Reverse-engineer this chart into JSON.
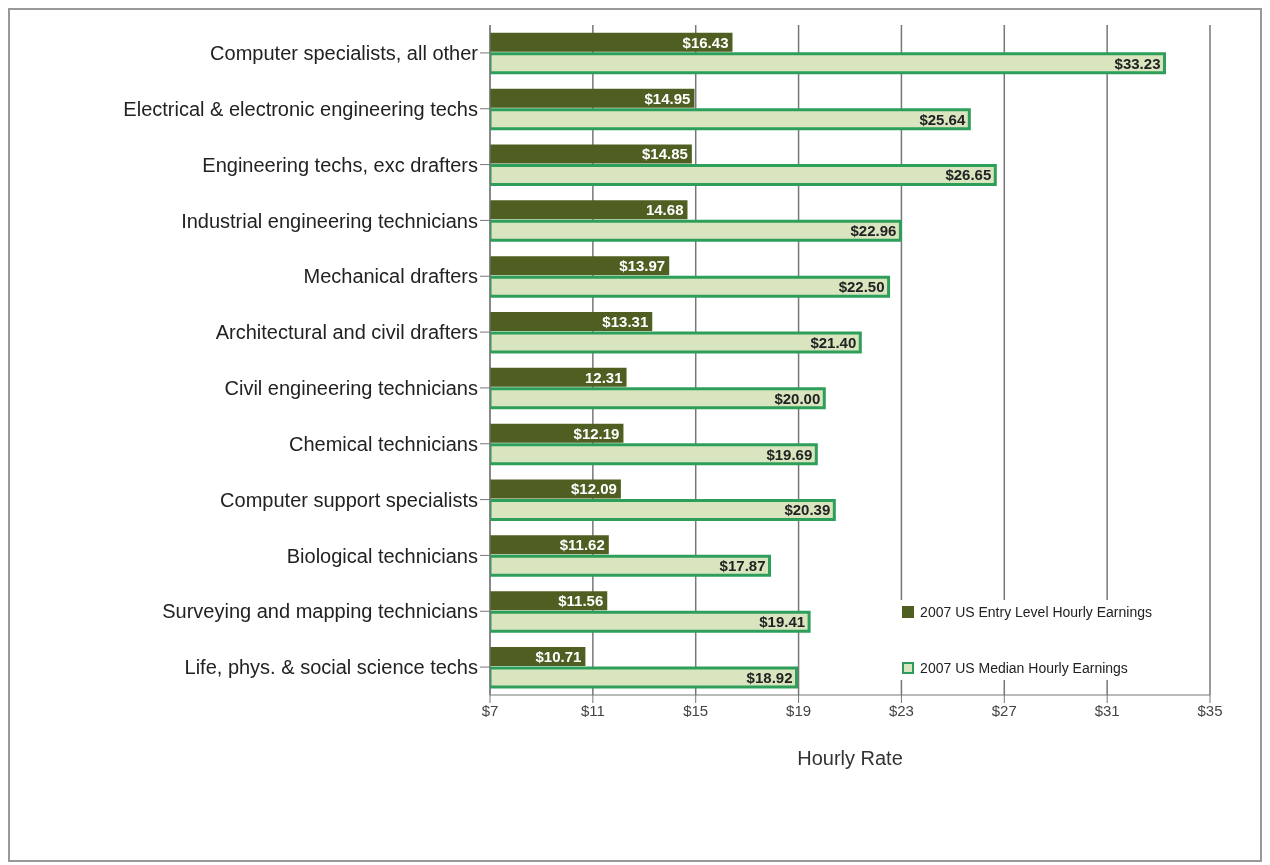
{
  "chart_data": {
    "type": "bar",
    "orientation": "horizontal",
    "xlabel": "Hourly Rate",
    "categories": [
      "Computer specialists, all other",
      "Electrical & electronic engineering techs",
      "Engineering techs, exc drafters",
      "Industrial engineering technicians",
      "Mechanical drafters",
      "Architectural and civil drafters",
      "Civil engineering technicians",
      "Chemical technicians",
      "Computer support specialists",
      "Biological technicians",
      "Surveying and mapping technicians",
      "Life, phys. & social science techs"
    ],
    "series": [
      {
        "name": "2007  US Entry Level Hourly Earnings",
        "color": "#4f5f22",
        "values": [
          16.43,
          14.95,
          14.85,
          14.68,
          13.97,
          13.31,
          12.31,
          12.19,
          12.09,
          11.62,
          11.56,
          10.71
        ],
        "value_labels": [
          "$16.43",
          "$14.95",
          "$14.85",
          "14.68",
          "$13.97",
          "$13.31",
          "12.31",
          "$12.19",
          "$12.09",
          "$11.62",
          "$11.56",
          "$10.71"
        ]
      },
      {
        "name": "2007 US Median Hourly Earnings",
        "color": "#d9e5bf",
        "values": [
          33.23,
          25.64,
          26.65,
          22.96,
          22.5,
          21.4,
          20.0,
          19.69,
          20.39,
          17.87,
          19.41,
          18.92
        ],
        "value_labels": [
          "$33.23",
          "$25.64",
          "$26.65",
          "$22.96",
          "$22.50",
          "$21.40",
          "$20.00",
          "$19.69",
          "$20.39",
          "$17.87",
          "$19.41",
          "$18.92"
        ]
      }
    ],
    "xlim": [
      7,
      35
    ],
    "xticks": [
      {
        "value": 7,
        "label": "$7"
      },
      {
        "value": 11,
        "label": "$11"
      },
      {
        "value": 15,
        "label": "$15"
      },
      {
        "value": 19,
        "label": "$19"
      },
      {
        "value": 23,
        "label": "$23"
      },
      {
        "value": 27,
        "label": "$27"
      },
      {
        "value": 31,
        "label": "$31"
      },
      {
        "value": 35,
        "label": "$35"
      }
    ],
    "grid": "x",
    "legend": "bottom right"
  }
}
